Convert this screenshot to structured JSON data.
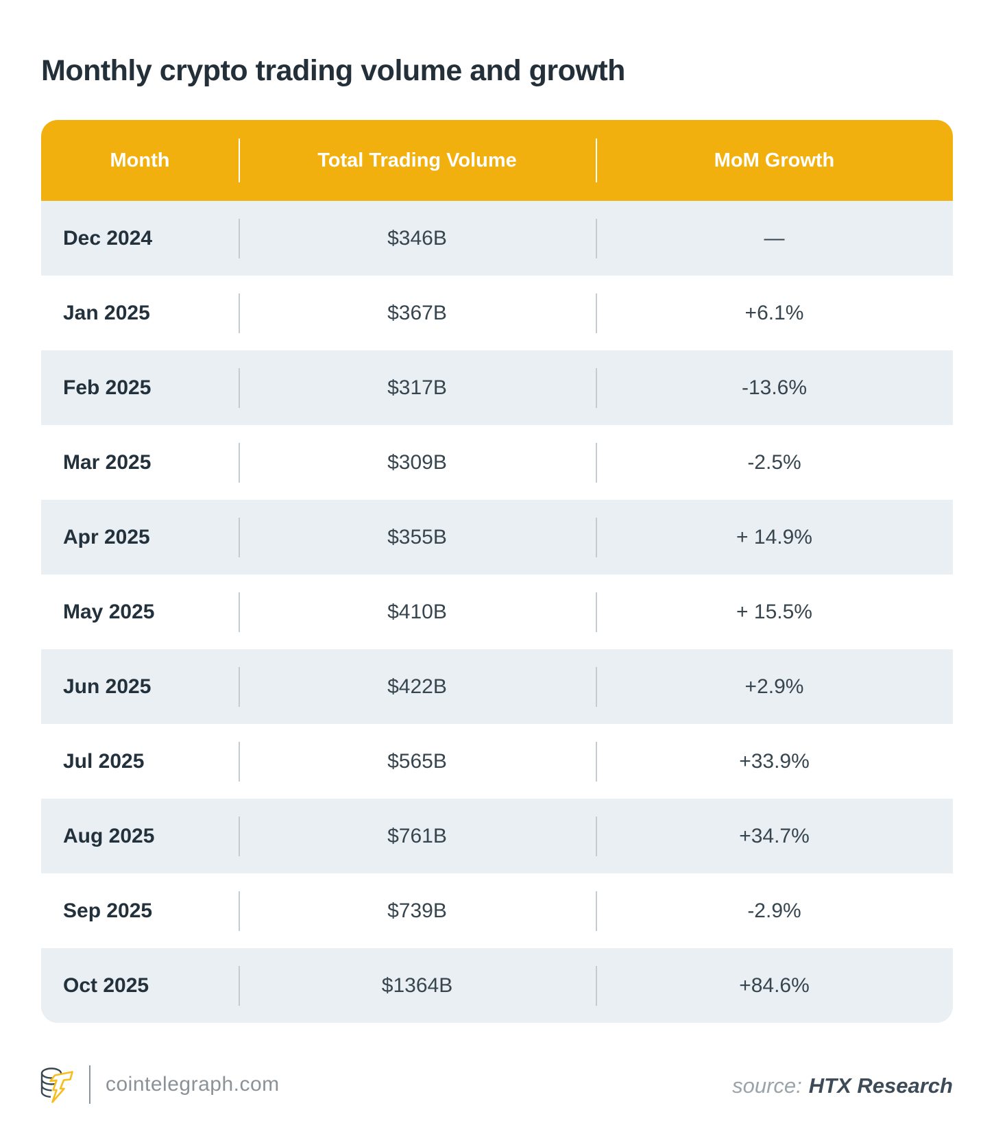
{
  "title": "Monthly crypto trading volume and growth",
  "table": {
    "headers": [
      "Month",
      "Total Trading Volume",
      "MoM Growth"
    ],
    "rows": [
      {
        "month": "Dec 2024",
        "volume": "$346B",
        "growth": "—"
      },
      {
        "month": "Jan 2025",
        "volume": "$367B",
        "growth": "+6.1%"
      },
      {
        "month": "Feb 2025",
        "volume": "$317B",
        "growth": "-13.6%"
      },
      {
        "month": "Mar 2025",
        "volume": "$309B",
        "growth": "-2.5%"
      },
      {
        "month": "Apr 2025",
        "volume": "$355B",
        "growth": "+ 14.9%"
      },
      {
        "month": "May 2025",
        "volume": "$410B",
        "growth": "+ 15.5%"
      },
      {
        "month": "Jun 2025",
        "volume": "$422B",
        "growth": "+2.9%"
      },
      {
        "month": "Jul 2025",
        "volume": "$565B",
        "growth": "+33.9%"
      },
      {
        "month": "Aug 2025",
        "volume": "$761B",
        "growth": "+34.7%"
      },
      {
        "month": "Sep 2025",
        "volume": "$739B",
        "growth": "-2.9%"
      },
      {
        "month": "Oct 2025",
        "volume": "$1364B",
        "growth": "+84.6%"
      }
    ]
  },
  "footer": {
    "brand": "cointelegraph.com",
    "source_label": "source:",
    "source_value": "HTX Research",
    "logo_icon": "cointelegraph-coin-bolt"
  },
  "colors": {
    "header_bg": "#F2B00E",
    "row_alt_bg": "#E9EFF2",
    "row_bg": "#FFFFFF",
    "title_text": "#243039",
    "month_text": "#22313C",
    "value_text": "#37454F",
    "row_divider": "#C3CCD3",
    "footer_gray": "#8A9298",
    "source_value_text": "#3C4B57",
    "logo_bolt": "#F7BC1E"
  },
  "chart_data": {
    "type": "table",
    "title": "Monthly crypto trading volume and growth",
    "columns": [
      "Month",
      "Total Trading Volume",
      "MoM Growth"
    ],
    "months": [
      "Dec 2024",
      "Jan 2025",
      "Feb 2025",
      "Mar 2025",
      "Apr 2025",
      "May 2025",
      "Jun 2025",
      "Jul 2025",
      "Aug 2025",
      "Sep 2025",
      "Oct 2025"
    ],
    "volume_billions_usd": [
      346,
      367,
      317,
      309,
      355,
      410,
      422,
      565,
      761,
      739,
      1364
    ],
    "mom_growth_percent": [
      null,
      6.1,
      -13.6,
      -2.5,
      14.9,
      15.5,
      2.9,
      33.9,
      34.7,
      -2.9,
      84.6
    ],
    "source": "HTX Research"
  }
}
